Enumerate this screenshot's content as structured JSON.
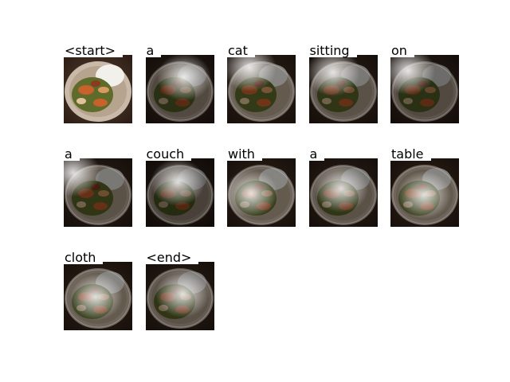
{
  "figure": {
    "tokens": [
      "<start>",
      "a",
      "cat",
      "sitting",
      "on",
      "a",
      "couch",
      "with",
      "a",
      "table",
      "cloth",
      "<end>"
    ]
  },
  "colors": {
    "background": "#ffffff",
    "plate_rim": "#c9b9a8",
    "food_orange": "#c8612c",
    "food_green": "#5e6b2a",
    "rice": "#f2f0ea",
    "table_dark": "#2a1c14"
  }
}
